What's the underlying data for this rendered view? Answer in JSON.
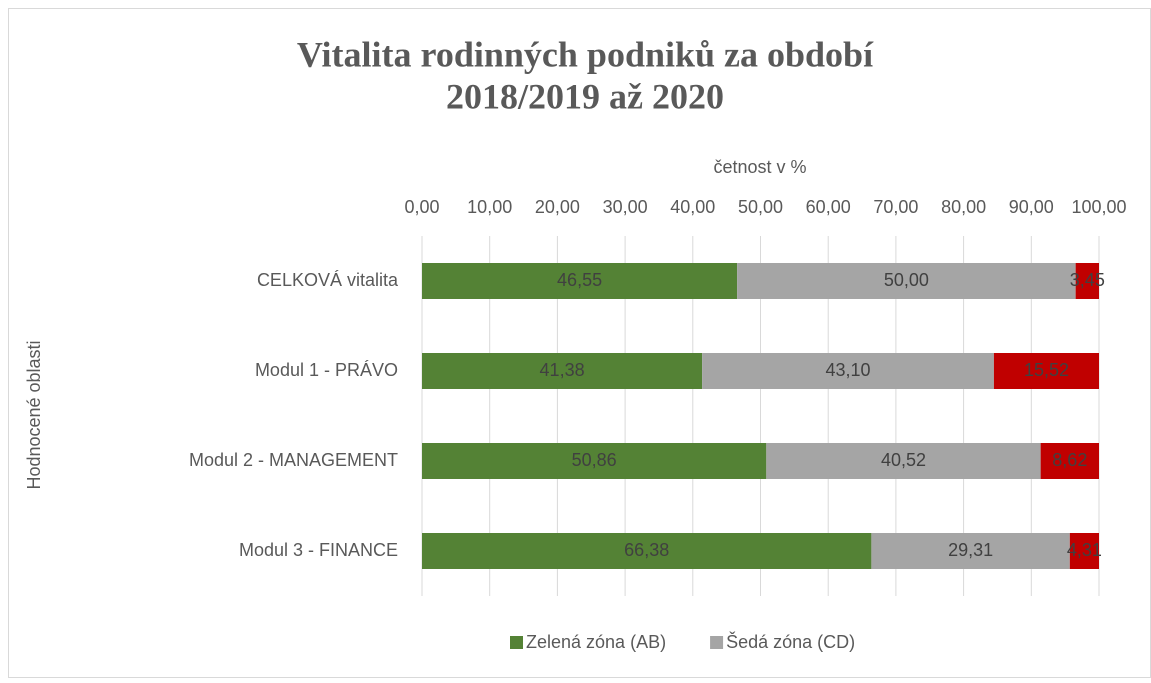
{
  "chart_data": {
    "type": "stacked-bar-horizontal",
    "title": [
      "Vitalita rodinných podniků za období",
      "2018/2019 až 2020"
    ],
    "x_axis_label": "četnost v %",
    "y_axis_label": "Hodnocené oblasti",
    "categories": [
      "CELKOVÁ vitalita",
      "Modul 1 - PRÁVO",
      "Modul 2 - MANAGEMENT",
      "Modul 3 - FINANCE"
    ],
    "series": [
      {
        "name": "Zelená zóna (AB)",
        "color": "#548235",
        "values": [
          46.55,
          41.38,
          50.86,
          66.38
        ],
        "value_labels": [
          "46,55",
          "41,38",
          "50,86",
          "66,38"
        ]
      },
      {
        "name": "Šedá zóna (CD)",
        "color": "#a5a5a5",
        "values": [
          50.0,
          43.1,
          40.52,
          29.31
        ],
        "value_labels": [
          "50,00",
          "43,10",
          "40,52",
          "29,31"
        ]
      },
      {
        "color": "#c00000",
        "values": [
          3.45,
          15.52,
          8.62,
          4.31
        ],
        "value_labels": [
          "3,45",
          "15,52",
          "8,62",
          "4,31"
        ]
      }
    ],
    "xlim": [
      0,
      100
    ],
    "xticks": [
      {
        "value": 0,
        "label": "0,00"
      },
      {
        "value": 10,
        "label": "10,00"
      },
      {
        "value": 20,
        "label": "20,00"
      },
      {
        "value": 30,
        "label": "30,00"
      },
      {
        "value": 40,
        "label": "40,00"
      },
      {
        "value": 50,
        "label": "50,00"
      },
      {
        "value": 60,
        "label": "60,00"
      },
      {
        "value": 70,
        "label": "70,00"
      },
      {
        "value": 80,
        "label": "80,00"
      },
      {
        "value": 90,
        "label": "90,00"
      },
      {
        "value": 100,
        "label": "100,00"
      }
    ],
    "grid": true,
    "legend": "bottom"
  }
}
